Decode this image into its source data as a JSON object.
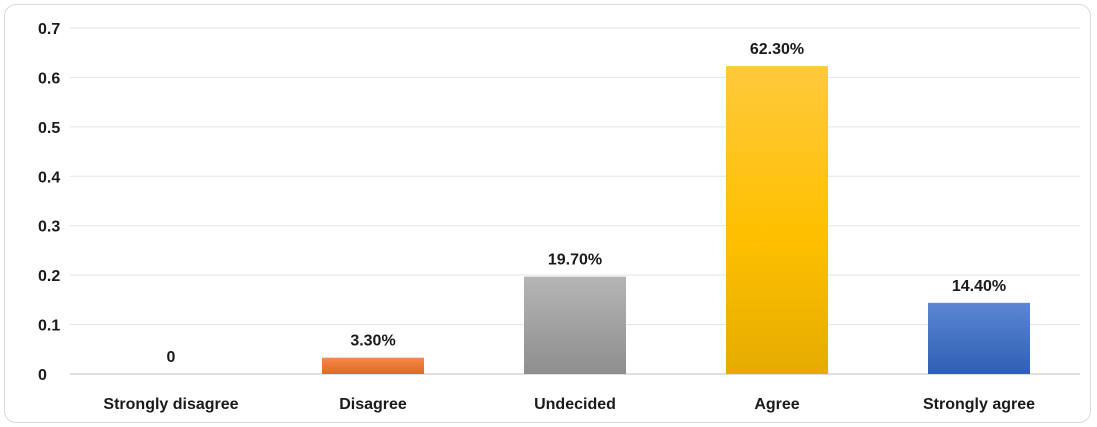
{
  "chart_data": {
    "type": "bar",
    "title": "",
    "xlabel": "",
    "ylabel": "",
    "ylim": [
      0,
      0.7
    ],
    "yticks": [
      "0",
      "0.1",
      "0.2",
      "0.3",
      "0.4",
      "0.5",
      "0.6",
      "0.7"
    ],
    "grid": true,
    "legend": "none",
    "categories": [
      "Strongly disagree",
      "Disagree",
      "Undecided",
      "Agree",
      "Strongly agree"
    ],
    "values": [
      0,
      0.033,
      0.197,
      0.623,
      0.144
    ],
    "data_labels": [
      "0",
      "3.30%",
      "19.70%",
      "62.30%",
      "14.40%"
    ],
    "colors": [
      "#4472c4",
      "#ed7d31",
      "#a5a5a5",
      "#ffc000",
      "#4472c4"
    ]
  }
}
